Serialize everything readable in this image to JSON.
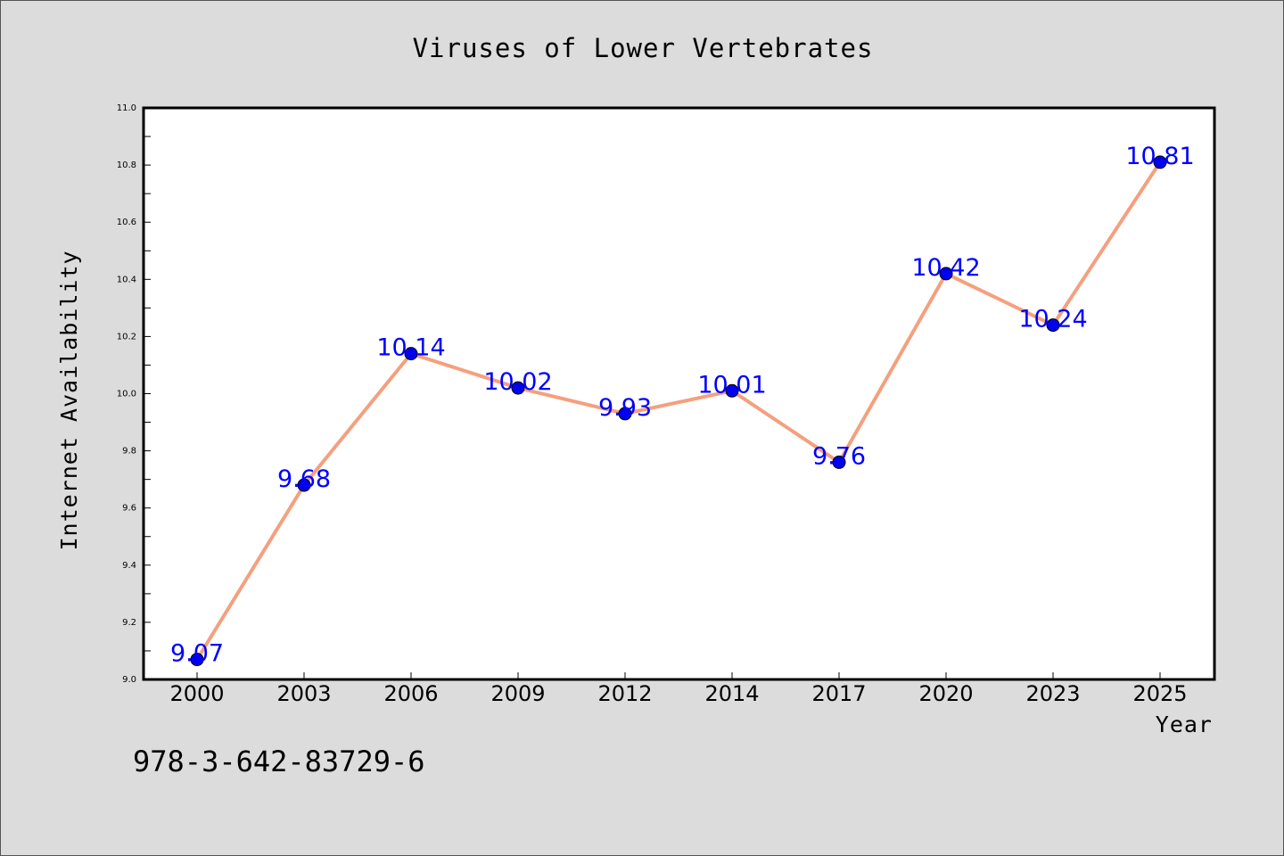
{
  "chart_data": {
    "type": "line",
    "title": "Viruses of Lower Vertebrates",
    "xlabel": "Year",
    "ylabel": "Internet Availability",
    "categories": [
      "2000",
      "2003",
      "2006",
      "2009",
      "2012",
      "2014",
      "2017",
      "2020",
      "2023",
      "2025"
    ],
    "series": [
      {
        "values": [
          9.07,
          9.68,
          10.14,
          10.02,
          9.93,
          10.01,
          9.76,
          10.42,
          10.24,
          10.81
        ],
        "line_color": "#f4a07e",
        "marker_color": "#0000ee"
      }
    ],
    "ylim": [
      9.0,
      11.0
    ],
    "yticks": [
      "9.0",
      "9.2",
      "9.4",
      "9.6",
      "9.8",
      "10.0",
      "10.2",
      "10.4",
      "10.6",
      "10.8",
      "11.0"
    ],
    "data_labels": [
      "9.07",
      "9.68",
      "10.14",
      "10.02",
      "9.93",
      "10.01",
      "9.76",
      "10.42",
      "10.24",
      "10.81"
    ],
    "data_label_color": "#0000ff",
    "grid": false,
    "legend": "none"
  },
  "footer": {
    "isbn": "978-3-642-83729-6"
  }
}
